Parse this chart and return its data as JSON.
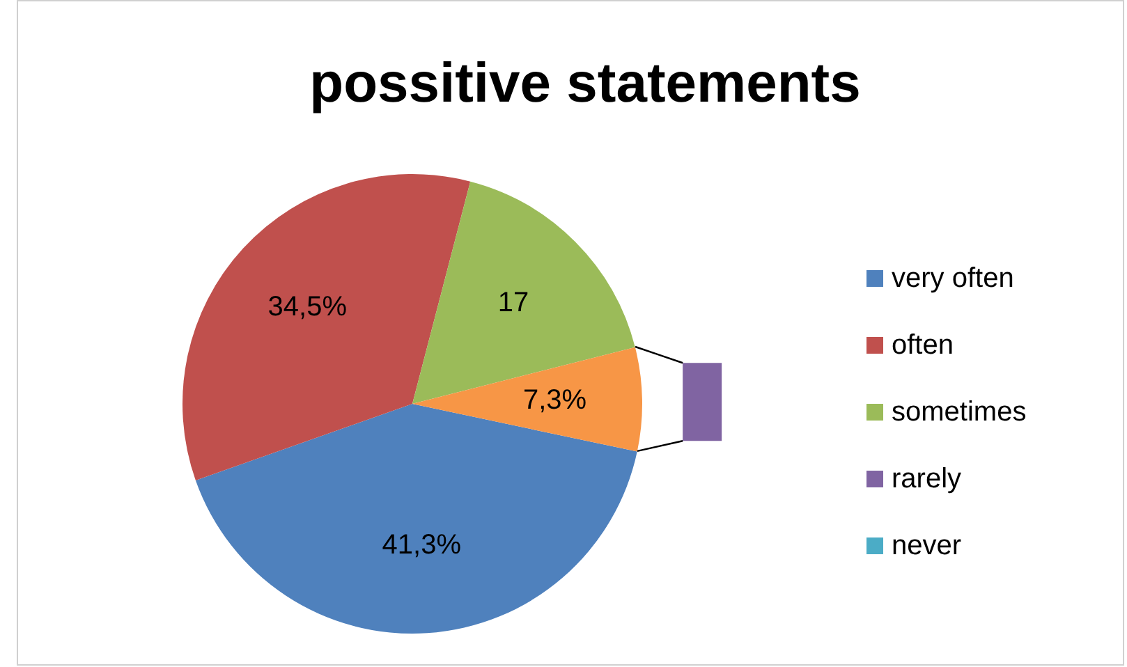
{
  "chart_data": {
    "type": "pie",
    "title": "possitive statements",
    "categories": [
      "very often",
      "often",
      "sometimes",
      null,
      "rarely",
      "never"
    ],
    "values": [
      41.3,
      34.5,
      17,
      7.3,
      null,
      null
    ],
    "colors": [
      "#4f81bd",
      "#c0504d",
      "#9bbb59",
      "#f79646",
      "#8064a2",
      "#4bacc6"
    ],
    "value_labels": [
      "41,3%",
      "34,5%",
      "17",
      "7,3%",
      null,
      null
    ],
    "legend": "right"
  }
}
